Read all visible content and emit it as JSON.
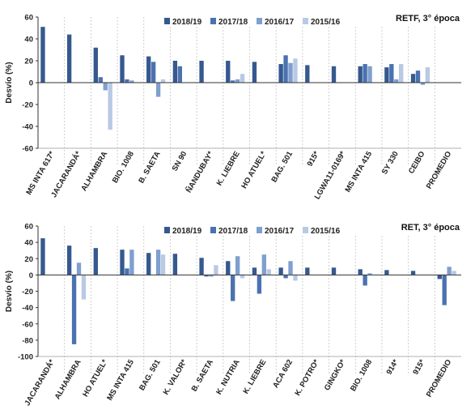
{
  "colors": [
    "#35598f",
    "#4b72b0",
    "#7f9fcf",
    "#b8c9e4"
  ],
  "chart_data": [
    {
      "type": "bar",
      "title": "RETF, 3° época",
      "ylabel": "Desvío (%)",
      "ylim": [
        -60,
        60
      ],
      "yticks": [
        60,
        40,
        20,
        0,
        -20,
        -40,
        -60
      ],
      "grid": false,
      "legend": "top-center",
      "categories": [
        "MS INTA 617*",
        "JACARANDÁ*",
        "ALHAMBRA",
        "BIO. 1008",
        "B. SAETA",
        "SN 90",
        "ÑANDUBAY*",
        "K. LIEBRE",
        "HO ATUEL*",
        "BAG. 501",
        "915*",
        "LGWA11-0169*",
        "MS INTA 415",
        "SY 330",
        "CEIBO",
        "PROMEDIO"
      ],
      "series": [
        {
          "name": "2018/19",
          "values": [
            51,
            44,
            32,
            25,
            24,
            20,
            20,
            20,
            19,
            17,
            16,
            15,
            15,
            14,
            8,
            0
          ]
        },
        {
          "name": "2017/18",
          "values": [
            null,
            null,
            5,
            3,
            19,
            15,
            null,
            2,
            null,
            25,
            null,
            null,
            17,
            17,
            11,
            0
          ]
        },
        {
          "name": "2016/17",
          "values": [
            null,
            null,
            -7,
            2,
            -13,
            null,
            null,
            3,
            null,
            18,
            null,
            null,
            15,
            3,
            -2,
            0
          ]
        },
        {
          "name": "2015/16",
          "values": [
            null,
            null,
            -43,
            null,
            3,
            null,
            null,
            8,
            null,
            22,
            null,
            null,
            null,
            17,
            14,
            0
          ]
        }
      ]
    },
    {
      "type": "bar",
      "title": "RET, 3° época",
      "ylabel": "Desvío (%)",
      "ylim": [
        -100,
        60
      ],
      "yticks": [
        60,
        40,
        20,
        0,
        -20,
        -40,
        -60,
        -80,
        -100
      ],
      "grid": false,
      "legend": "top-center",
      "categories": [
        "JACARANDÁ*",
        "ALHAMBRA",
        "HO ATUEL*",
        "MS INTA 415",
        "BAG. 501",
        "K. VALOR*",
        "B. SAETA",
        "K. NUTRIA",
        "K. LIEBRE",
        "ACA 602",
        "K. POTRO*",
        "GINGKO*",
        "BIO. 1008",
        "914*",
        "915*",
        "PROMEDIO"
      ],
      "series": [
        {
          "name": "2018/19",
          "values": [
            45,
            36,
            33,
            31,
            27,
            26,
            21,
            17,
            9,
            9,
            9,
            9,
            7,
            6,
            5,
            -5
          ]
        },
        {
          "name": "2017/18",
          "values": [
            null,
            -85,
            null,
            8,
            null,
            null,
            -2,
            -32,
            -23,
            -4,
            null,
            null,
            -13,
            null,
            null,
            -37
          ]
        },
        {
          "name": "2016/17",
          "values": [
            null,
            15,
            null,
            31,
            31,
            null,
            -2,
            23,
            25,
            17,
            null,
            null,
            2,
            null,
            null,
            10
          ]
        },
        {
          "name": "2015/16",
          "values": [
            null,
            -30,
            null,
            null,
            25,
            null,
            12,
            -4,
            7,
            -7,
            null,
            null,
            null,
            null,
            null,
            5
          ]
        }
      ]
    }
  ]
}
